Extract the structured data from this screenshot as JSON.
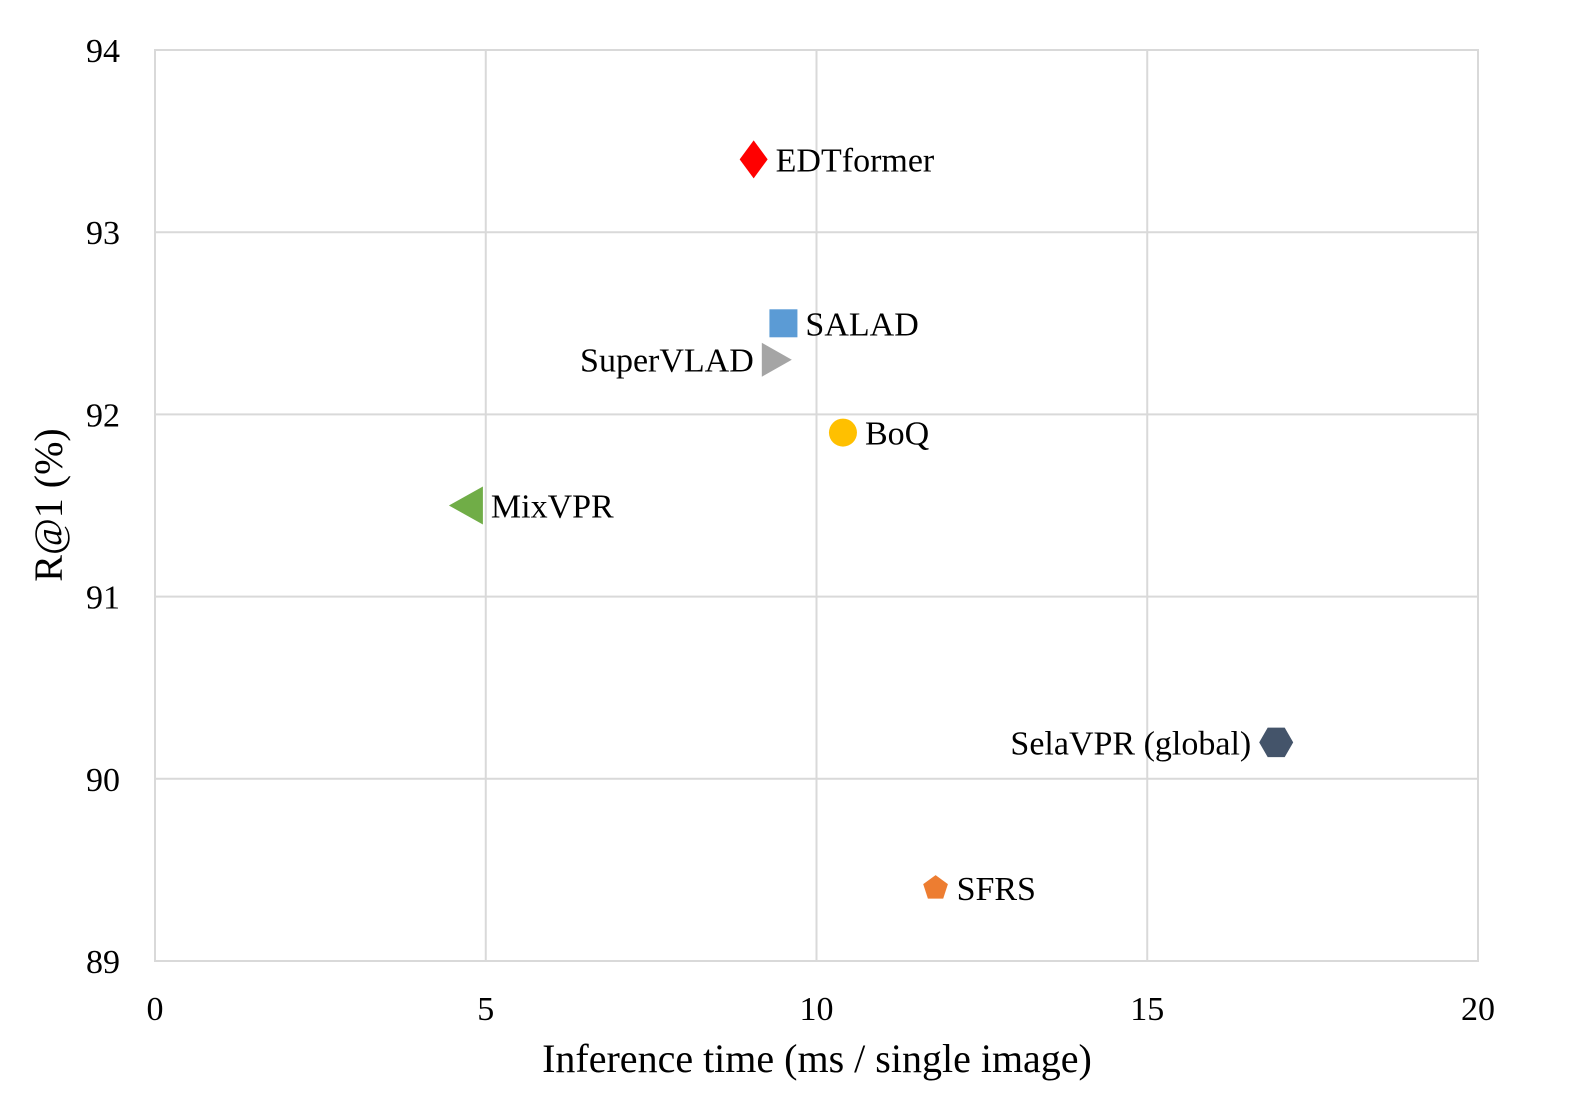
{
  "chart_data": {
    "type": "scatter",
    "title": "",
    "xlabel": "Inference time (ms / single image)",
    "ylabel": "R@1 (%)",
    "xlim": [
      0,
      20
    ],
    "ylim": [
      89,
      94
    ],
    "xticks": [
      "0",
      "5",
      "10",
      "15",
      "20"
    ],
    "yticks": [
      "89",
      "90",
      "91",
      "92",
      "93",
      "94"
    ],
    "grid": true,
    "legend": "none",
    "points": [
      {
        "name": "EDTformer",
        "x": 9.05,
        "y": 93.4,
        "marker": "diamond",
        "color": "#ff0000",
        "label_side": "right"
      },
      {
        "name": "SALAD",
        "x": 9.5,
        "y": 92.5,
        "marker": "square",
        "color": "#5b9bd5",
        "label_side": "right"
      },
      {
        "name": "SuperVLAD",
        "x": 9.4,
        "y": 92.3,
        "marker": "triangle-right",
        "color": "#a5a5a5",
        "label_side": "left"
      },
      {
        "name": "BoQ",
        "x": 10.4,
        "y": 91.9,
        "marker": "circle",
        "color": "#ffc000",
        "label_side": "right"
      },
      {
        "name": "MixVPR",
        "x": 4.7,
        "y": 91.5,
        "marker": "triangle-left",
        "color": "#70ad47",
        "label_side": "right"
      },
      {
        "name": "SelaVPR (global)",
        "x": 16.95,
        "y": 90.2,
        "marker": "hexagon",
        "color": "#44546a",
        "label_side": "left"
      },
      {
        "name": "SFRS",
        "x": 11.8,
        "y": 89.4,
        "marker": "pentagon",
        "color": "#ed7d31",
        "label_side": "right"
      }
    ]
  }
}
